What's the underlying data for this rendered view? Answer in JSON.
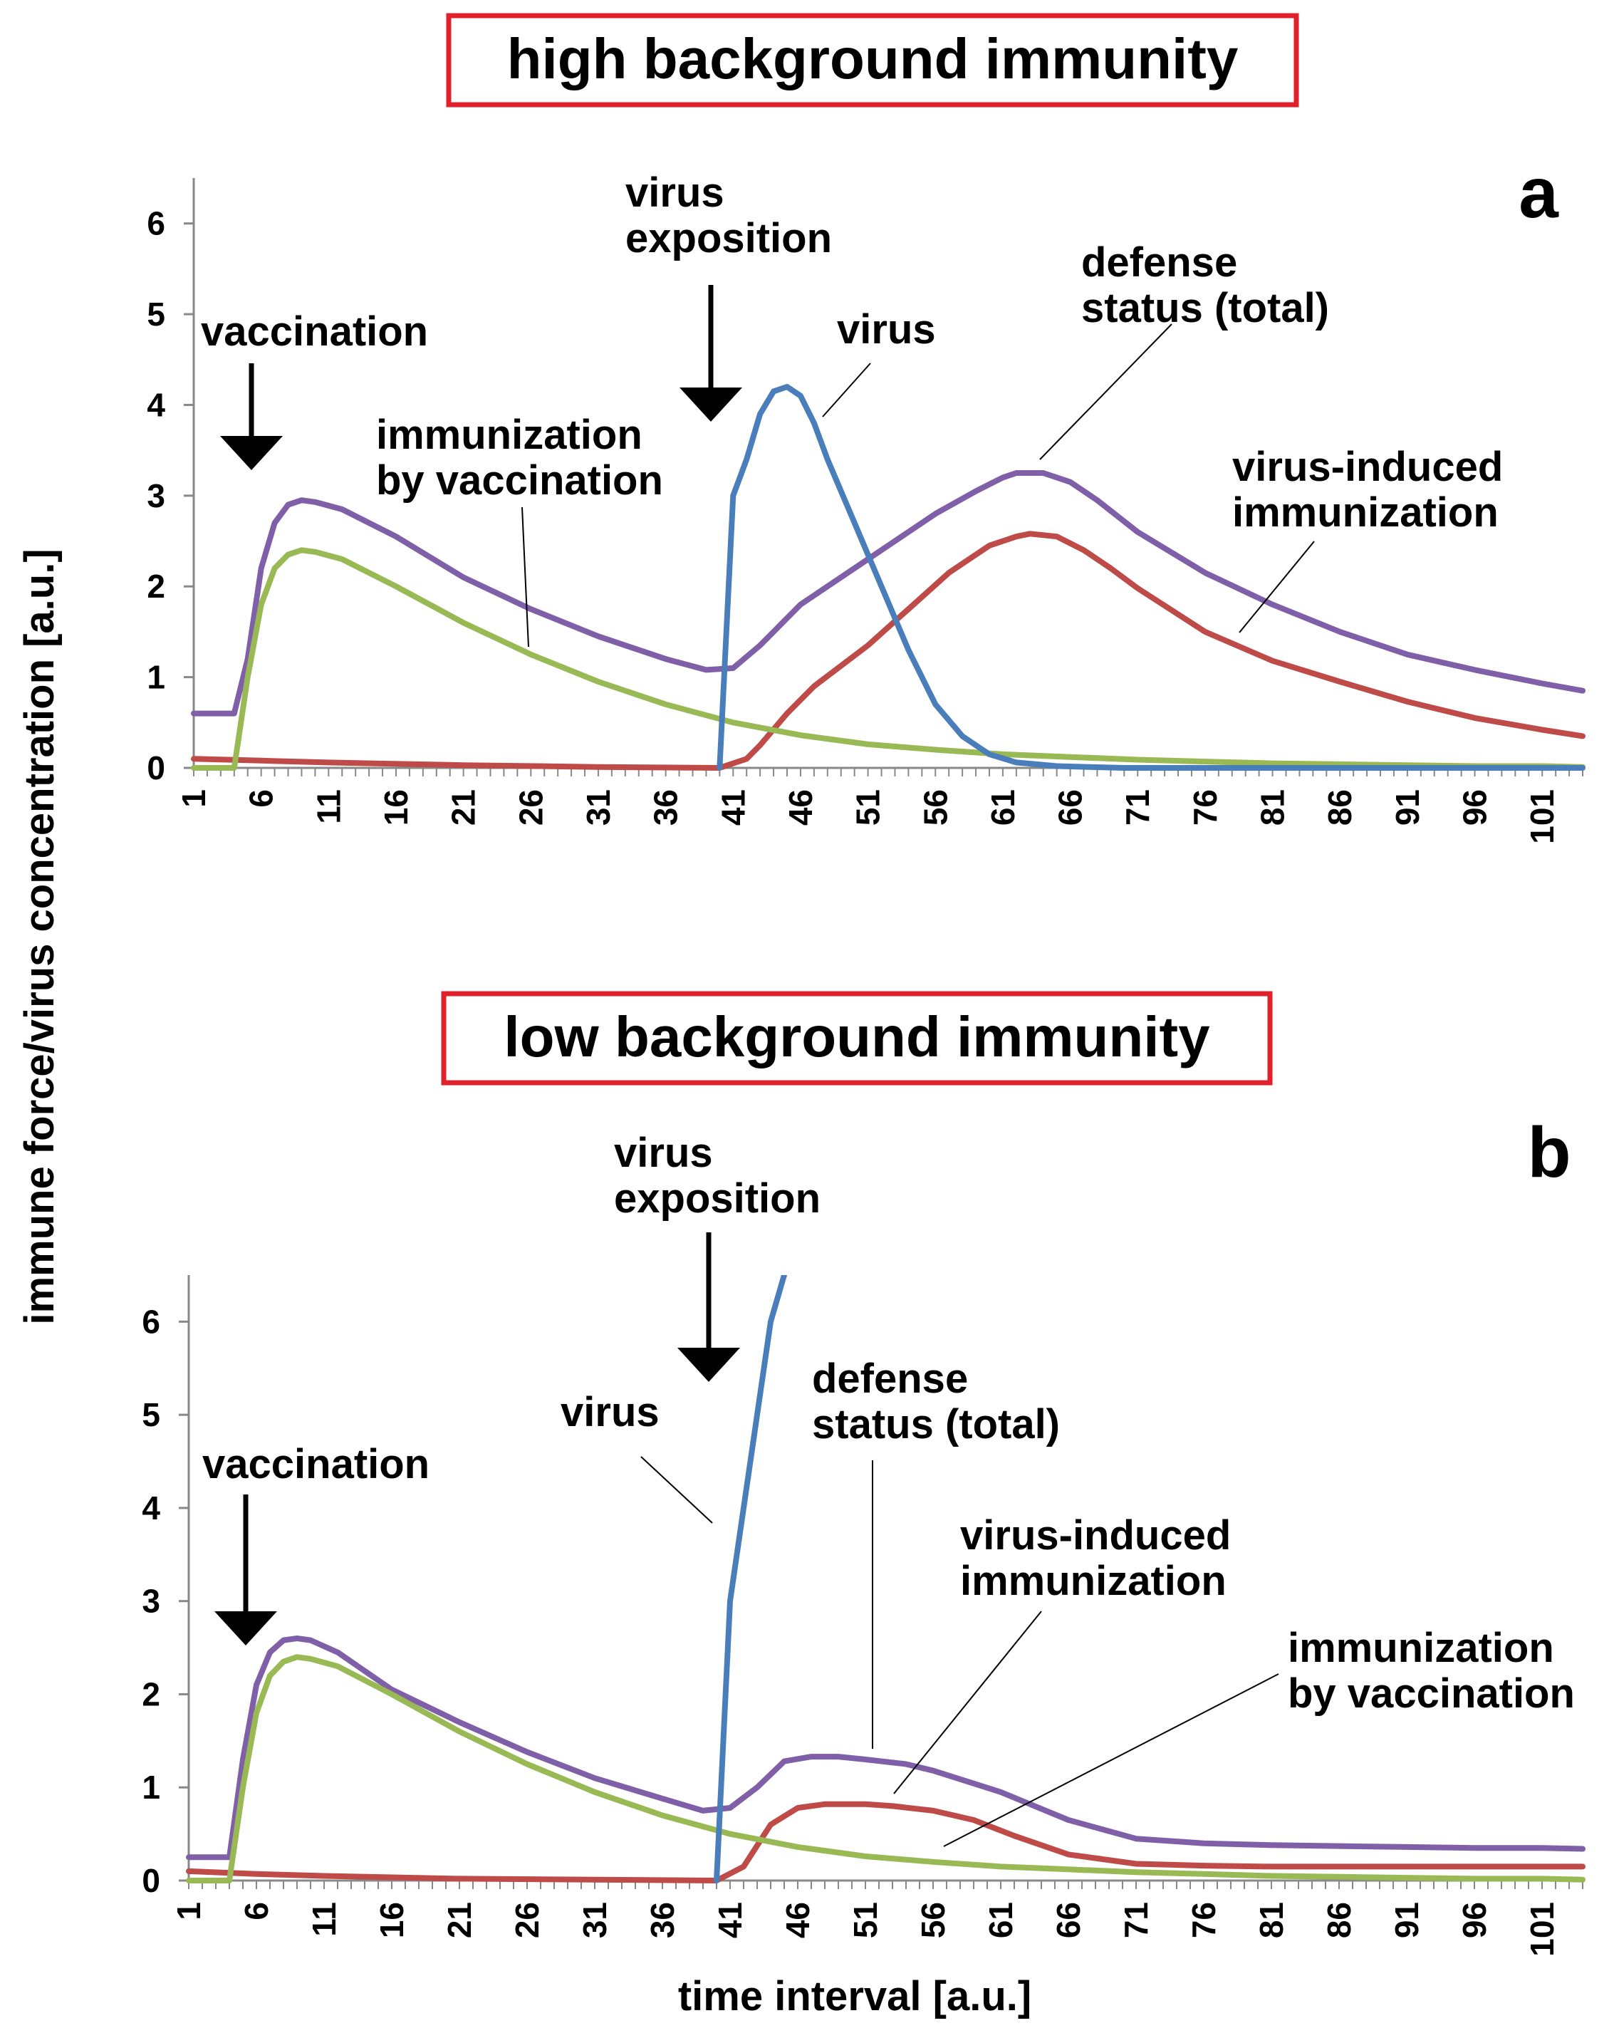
{
  "y_axis_label": "immune force/virus concentration [a.u.]",
  "x_axis_label": "time interval [a.u.]",
  "colors": {
    "virus": "#4a7ebb",
    "defense_total": "#7f5fa8",
    "virus_induced": "#be4b48",
    "vaccination": "#98b954",
    "title_box": "#e0202a"
  },
  "chart_data": [
    {
      "type": "line",
      "panel": "a",
      "title": "high background immunity",
      "xlabel": "time interval [a.u.]",
      "ylabel": "immune force/virus concentration [a.u.]",
      "xlim": [
        1,
        104
      ],
      "ylim": [
        0,
        6.5
      ],
      "xticks": [
        1,
        6,
        11,
        16,
        21,
        26,
        31,
        36,
        41,
        46,
        51,
        56,
        61,
        66,
        71,
        76,
        81,
        86,
        91,
        96,
        101
      ],
      "yticks": [
        0,
        1,
        2,
        3,
        4,
        5,
        6
      ],
      "series": [
        {
          "name": "virus",
          "color": "#4a7ebb",
          "points": [
            [
              40,
              0
            ],
            [
              41,
              3.0
            ],
            [
              42,
              3.4
            ],
            [
              43,
              3.9
            ],
            [
              44,
              4.15
            ],
            [
              45,
              4.2
            ],
            [
              46,
              4.1
            ],
            [
              47,
              3.8
            ],
            [
              48,
              3.4
            ],
            [
              50,
              2.7
            ],
            [
              52,
              2.0
            ],
            [
              54,
              1.3
            ],
            [
              56,
              0.7
            ],
            [
              58,
              0.35
            ],
            [
              60,
              0.15
            ],
            [
              62,
              0.06
            ],
            [
              65,
              0.02
            ],
            [
              70,
              0.0
            ],
            [
              104,
              0.0
            ]
          ]
        },
        {
          "name": "defense status (total)",
          "color": "#7f5fa8",
          "points": [
            [
              1,
              0.6
            ],
            [
              4,
              0.6
            ],
            [
              5,
              1.2
            ],
            [
              6,
              2.2
            ],
            [
              7,
              2.7
            ],
            [
              8,
              2.9
            ],
            [
              9,
              2.95
            ],
            [
              10,
              2.93
            ],
            [
              12,
              2.85
            ],
            [
              16,
              2.55
            ],
            [
              21,
              2.1
            ],
            [
              26,
              1.75
            ],
            [
              31,
              1.45
            ],
            [
              36,
              1.2
            ],
            [
              39,
              1.08
            ],
            [
              41,
              1.1
            ],
            [
              43,
              1.35
            ],
            [
              46,
              1.8
            ],
            [
              51,
              2.3
            ],
            [
              56,
              2.8
            ],
            [
              59,
              3.05
            ],
            [
              61,
              3.2
            ],
            [
              62,
              3.25
            ],
            [
              64,
              3.25
            ],
            [
              66,
              3.15
            ],
            [
              68,
              2.95
            ],
            [
              71,
              2.6
            ],
            [
              76,
              2.15
            ],
            [
              81,
              1.8
            ],
            [
              86,
              1.5
            ],
            [
              91,
              1.25
            ],
            [
              96,
              1.08
            ],
            [
              101,
              0.93
            ],
            [
              104,
              0.85
            ]
          ]
        },
        {
          "name": "virus-induced immunization",
          "color": "#be4b48",
          "points": [
            [
              1,
              0.1
            ],
            [
              6,
              0.08
            ],
            [
              11,
              0.06
            ],
            [
              21,
              0.03
            ],
            [
              31,
              0.01
            ],
            [
              40,
              0.0
            ],
            [
              42,
              0.1
            ],
            [
              43,
              0.25
            ],
            [
              45,
              0.6
            ],
            [
              47,
              0.9
            ],
            [
              51,
              1.35
            ],
            [
              54,
              1.75
            ],
            [
              57,
              2.15
            ],
            [
              60,
              2.45
            ],
            [
              62,
              2.55
            ],
            [
              63,
              2.58
            ],
            [
              65,
              2.55
            ],
            [
              67,
              2.4
            ],
            [
              69,
              2.2
            ],
            [
              71,
              1.98
            ],
            [
              76,
              1.5
            ],
            [
              81,
              1.18
            ],
            [
              86,
              0.95
            ],
            [
              91,
              0.73
            ],
            [
              96,
              0.55
            ],
            [
              101,
              0.42
            ],
            [
              104,
              0.35
            ]
          ]
        },
        {
          "name": "immunization by vaccination",
          "color": "#98b954",
          "points": [
            [
              1,
              0.0
            ],
            [
              4,
              0.0
            ],
            [
              5,
              1.0
            ],
            [
              6,
              1.8
            ],
            [
              7,
              2.2
            ],
            [
              8,
              2.35
            ],
            [
              9,
              2.4
            ],
            [
              10,
              2.38
            ],
            [
              12,
              2.3
            ],
            [
              16,
              2.0
            ],
            [
              21,
              1.6
            ],
            [
              26,
              1.25
            ],
            [
              31,
              0.95
            ],
            [
              36,
              0.7
            ],
            [
              41,
              0.5
            ],
            [
              46,
              0.36
            ],
            [
              51,
              0.26
            ],
            [
              56,
              0.2
            ],
            [
              61,
              0.15
            ],
            [
              66,
              0.12
            ],
            [
              71,
              0.09
            ],
            [
              76,
              0.07
            ],
            [
              81,
              0.05
            ],
            [
              86,
              0.04
            ],
            [
              91,
              0.03
            ],
            [
              96,
              0.02
            ],
            [
              101,
              0.02
            ],
            [
              104,
              0.01
            ]
          ]
        }
      ],
      "annotations": [
        {
          "id": "vaccination",
          "lines": [
            "vaccination"
          ],
          "kind": "arrow",
          "x": 5,
          "y_tip": 3.0
        },
        {
          "id": "exposition",
          "lines": [
            "virus",
            "exposition"
          ],
          "kind": "arrow",
          "x": 39.5,
          "y_tip": 3.8
        },
        {
          "id": "virus",
          "lines": [
            "virus"
          ],
          "kind": "leader",
          "x": 46,
          "y": 3.9
        },
        {
          "id": "defense",
          "lines": [
            "defense",
            "status (total)"
          ],
          "kind": "leader",
          "x": 62,
          "y": 3.3
        },
        {
          "id": "vaccine_imm",
          "lines": [
            "immunization",
            "by vaccination"
          ],
          "kind": "leader",
          "x": 25,
          "y": 1.3
        },
        {
          "id": "induced",
          "lines": [
            "virus-induced",
            "immunization"
          ],
          "kind": "leader",
          "x": 79,
          "y": 1.5
        }
      ]
    },
    {
      "type": "line",
      "panel": "b",
      "title": "low background immunity",
      "xlabel": "time interval [a.u.]",
      "ylabel": "immune force/virus concentration [a.u.]",
      "xlim": [
        1,
        104
      ],
      "ylim": [
        0,
        6.5
      ],
      "xticks": [
        1,
        6,
        11,
        16,
        21,
        26,
        31,
        36,
        41,
        46,
        51,
        56,
        61,
        66,
        71,
        76,
        81,
        86,
        91,
        96,
        101
      ],
      "yticks": [
        0,
        1,
        2,
        3,
        4,
        5,
        6
      ],
      "series": [
        {
          "name": "virus",
          "color": "#4a7ebb",
          "points": [
            [
              40,
              0
            ],
            [
              41,
              3.0
            ],
            [
              42,
              4.0
            ],
            [
              43,
              5.0
            ],
            [
              44,
              6.0
            ],
            [
              45,
              6.5
            ]
          ]
        },
        {
          "name": "defense status (total)",
          "color": "#7f5fa8",
          "points": [
            [
              1,
              0.25
            ],
            [
              4,
              0.25
            ],
            [
              5,
              1.3
            ],
            [
              6,
              2.1
            ],
            [
              7,
              2.45
            ],
            [
              8,
              2.58
            ],
            [
              9,
              2.6
            ],
            [
              10,
              2.58
            ],
            [
              12,
              2.45
            ],
            [
              16,
              2.05
            ],
            [
              21,
              1.7
            ],
            [
              26,
              1.38
            ],
            [
              31,
              1.1
            ],
            [
              36,
              0.88
            ],
            [
              39,
              0.75
            ],
            [
              41,
              0.78
            ],
            [
              43,
              1.0
            ],
            [
              45,
              1.28
            ],
            [
              47,
              1.33
            ],
            [
              49,
              1.33
            ],
            [
              51,
              1.3
            ],
            [
              54,
              1.25
            ],
            [
              56,
              1.18
            ],
            [
              61,
              0.95
            ],
            [
              66,
              0.65
            ],
            [
              71,
              0.45
            ],
            [
              76,
              0.4
            ],
            [
              81,
              0.38
            ],
            [
              86,
              0.37
            ],
            [
              91,
              0.36
            ],
            [
              96,
              0.35
            ],
            [
              101,
              0.35
            ],
            [
              104,
              0.34
            ]
          ]
        },
        {
          "name": "virus-induced immunization",
          "color": "#be4b48",
          "points": [
            [
              1,
              0.1
            ],
            [
              6,
              0.07
            ],
            [
              11,
              0.05
            ],
            [
              21,
              0.02
            ],
            [
              31,
              0.01
            ],
            [
              40,
              0.0
            ],
            [
              42,
              0.15
            ],
            [
              44,
              0.6
            ],
            [
              46,
              0.78
            ],
            [
              48,
              0.82
            ],
            [
              51,
              0.82
            ],
            [
              53,
              0.8
            ],
            [
              56,
              0.75
            ],
            [
              59,
              0.65
            ],
            [
              62,
              0.48
            ],
            [
              66,
              0.28
            ],
            [
              71,
              0.18
            ],
            [
              76,
              0.16
            ],
            [
              81,
              0.15
            ],
            [
              91,
              0.15
            ],
            [
              101,
              0.15
            ],
            [
              104,
              0.15
            ]
          ]
        },
        {
          "name": "immunization by vaccination",
          "color": "#98b954",
          "points": [
            [
              1,
              0.0
            ],
            [
              4,
              0.0
            ],
            [
              5,
              1.0
            ],
            [
              6,
              1.8
            ],
            [
              7,
              2.2
            ],
            [
              8,
              2.35
            ],
            [
              9,
              2.4
            ],
            [
              10,
              2.38
            ],
            [
              12,
              2.3
            ],
            [
              16,
              2.0
            ],
            [
              21,
              1.6
            ],
            [
              26,
              1.25
            ],
            [
              31,
              0.95
            ],
            [
              36,
              0.7
            ],
            [
              41,
              0.5
            ],
            [
              46,
              0.36
            ],
            [
              51,
              0.26
            ],
            [
              56,
              0.2
            ],
            [
              61,
              0.15
            ],
            [
              66,
              0.12
            ],
            [
              71,
              0.09
            ],
            [
              76,
              0.07
            ],
            [
              81,
              0.05
            ],
            [
              86,
              0.04
            ],
            [
              91,
              0.03
            ],
            [
              96,
              0.02
            ],
            [
              101,
              0.02
            ],
            [
              104,
              0.01
            ]
          ]
        }
      ],
      "annotations": [
        {
          "id": "vaccination",
          "lines": [
            "vaccination"
          ],
          "kind": "arrow",
          "x": 4.5,
          "y_tip": 2.5
        },
        {
          "id": "exposition",
          "lines": [
            "virus",
            "exposition"
          ],
          "kind": "arrow",
          "x": 40.5,
          "y_tip": 5.5
        },
        {
          "id": "virus",
          "lines": [
            "virus"
          ],
          "kind": "leader",
          "x": 40.5,
          "y": 3.9
        },
        {
          "id": "defense",
          "lines": [
            "defense",
            "status (total)"
          ],
          "kind": "leader",
          "x": 53.5,
          "y": 1.45
        },
        {
          "id": "induced",
          "lines": [
            "virus-induced",
            "immunization"
          ],
          "kind": "leader",
          "x": 54,
          "y": 0.95
        },
        {
          "id": "vaccine_imm",
          "lines": [
            "immunization",
            "by vaccination"
          ],
          "kind": "leader",
          "x": 57,
          "y": 0.35
        }
      ]
    }
  ]
}
